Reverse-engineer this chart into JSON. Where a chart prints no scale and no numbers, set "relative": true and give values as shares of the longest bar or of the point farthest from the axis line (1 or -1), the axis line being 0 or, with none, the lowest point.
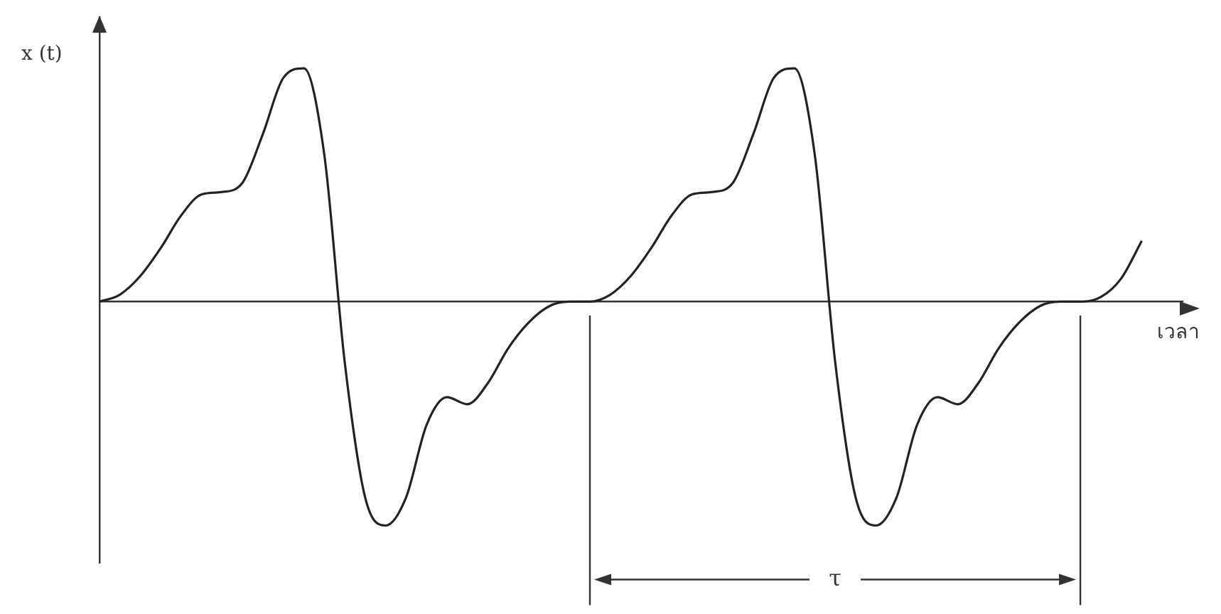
{
  "chart_data": {
    "type": "line",
    "relative": true,
    "xlabel": "เวลา",
    "ylabel": "x (t)",
    "annotations": [
      "τ"
    ],
    "tick_labels": false,
    "marker": "none",
    "line_style": "solid",
    "legend": false,
    "categories": [
      null,
      null,
      null,
      null,
      null,
      null,
      null,
      null,
      null,
      null,
      null,
      null,
      null,
      null,
      null,
      null,
      null,
      null,
      null,
      null,
      null,
      null,
      null,
      null,
      null,
      null,
      null,
      null,
      null,
      null,
      null,
      null,
      null,
      null,
      null,
      null,
      null,
      null,
      null,
      null,
      null,
      null,
      null,
      null,
      null,
      null,
      null,
      null,
      null,
      null,
      null,
      null
    ],
    "series": [
      {
        "color": "#222222",
        "values": [
          0,
          0.03,
          0.11,
          0.23,
          0.37,
          0.46,
          0.47,
          0.51,
          0.72,
          0.96,
          1,
          0.63,
          -0.26,
          -0.84,
          -0.96,
          -0.84,
          -0.53,
          -0.41,
          -0.44,
          -0.35,
          -0.2,
          -0.09,
          -0.02,
          0,
          0,
          0.03,
          0.11,
          0.23,
          0.37,
          0.46,
          0.47,
          0.51,
          0.72,
          0.96,
          1,
          0.63,
          -0.26,
          -0.84,
          -0.96,
          -0.84,
          -0.53,
          -0.41,
          -0.44,
          -0.35,
          -0.2,
          -0.09,
          -0.02,
          0,
          0,
          0.02,
          0.1,
          0.26
        ]
      }
    ]
  }
}
